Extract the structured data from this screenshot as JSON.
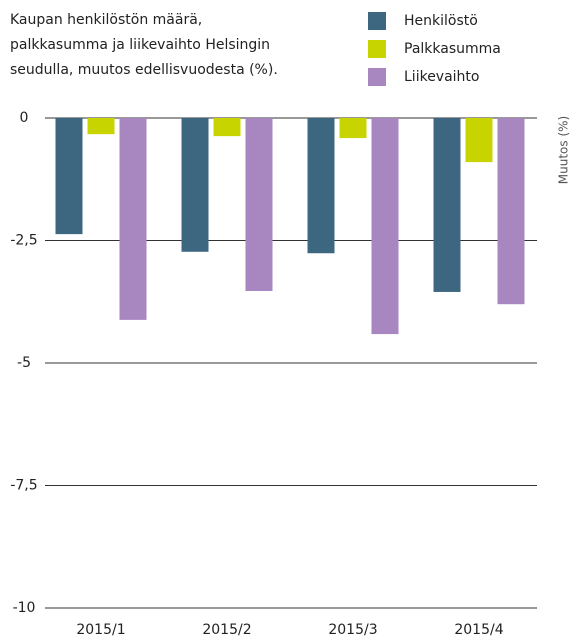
{
  "chart_data": {
    "type": "bar",
    "title": [
      "Kaupan henkilöstön määrä,",
      "palkkasumma ja liikevaihto Helsingin",
      "seudulla, muutos  edellisvuodesta (%)."
    ],
    "y_label": "Muutos (%)",
    "categories": [
      "2015/1",
      "2015/2",
      "2015/3",
      "2015/4"
    ],
    "series": [
      {
        "name": "Henkilöstö",
        "color": "#3d6680",
        "values": [
          -2.37,
          -2.73,
          -2.76,
          -3.55
        ]
      },
      {
        "name": "Palkkasumma",
        "color": "#c8d400",
        "values": [
          -0.33,
          -0.37,
          -0.41,
          -0.9
        ]
      },
      {
        "name": "Liikevaihto",
        "color": "#a886c0",
        "values": [
          -4.12,
          -3.53,
          -4.41,
          -3.8
        ]
      }
    ],
    "ylim": [
      -10,
      0
    ],
    "yticks": [
      0,
      {
        "value": -2.5,
        "label": "-2,5"
      },
      -5,
      {
        "value": -7.5,
        "label": "-7,5"
      },
      -10
    ],
    "grid": true,
    "legend": "top-right"
  }
}
